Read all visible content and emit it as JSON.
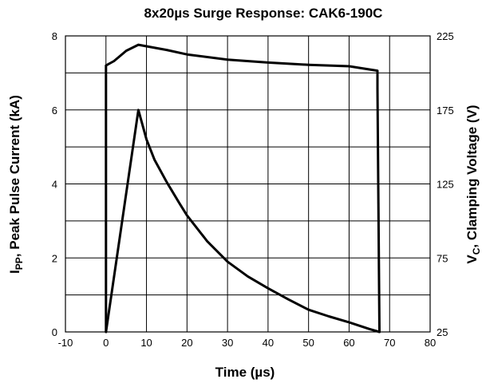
{
  "chart_data": {
    "type": "line",
    "title": "8x20µs Surge Response: CAK6-190C",
    "xlabel": "Time (µs)",
    "ylabel": "Ipp, Peak Pulse Current (kA)",
    "ylabel_parts": {
      "main": "I",
      "sub": "PP",
      "rest": ", Peak Pulse Current  (kA)"
    },
    "y2label": "VC, Clamping Voltage  (V)",
    "y2label_parts": {
      "main": "V",
      "sub": "C",
      "rest": ", Clamping Voltage  (V)"
    },
    "xlim": [
      -10,
      80
    ],
    "ylim": [
      0,
      8
    ],
    "y2lim": [
      25,
      225
    ],
    "xticks": [
      -10,
      0,
      10,
      20,
      30,
      40,
      50,
      60,
      70,
      80
    ],
    "yticks": [
      0,
      2,
      4,
      6,
      8
    ],
    "y2ticks": [
      25,
      75,
      125,
      175,
      225
    ],
    "grid": true,
    "series": [
      {
        "axis": "left",
        "x": [
          0,
          0,
          8,
          9,
          10,
          12,
          15,
          18,
          20,
          25,
          30,
          35,
          40,
          45,
          50,
          55,
          60,
          65,
          67.5
        ],
        "y": [
          0,
          0,
          6,
          5.6,
          5.2,
          4.65,
          4.05,
          3.5,
          3.15,
          2.45,
          1.9,
          1.5,
          1.18,
          0.88,
          0.6,
          0.42,
          0.26,
          0.08,
          0
        ]
      },
      {
        "axis": "right",
        "x": [
          0,
          0,
          2,
          5,
          8,
          10,
          15,
          20,
          30,
          40,
          50,
          60,
          67,
          67,
          67.5
        ],
        "y": [
          25,
          205,
          208,
          215,
          219,
          218,
          215.5,
          212.5,
          209,
          207,
          205.5,
          204.5,
          201.5,
          190,
          25
        ]
      }
    ]
  }
}
